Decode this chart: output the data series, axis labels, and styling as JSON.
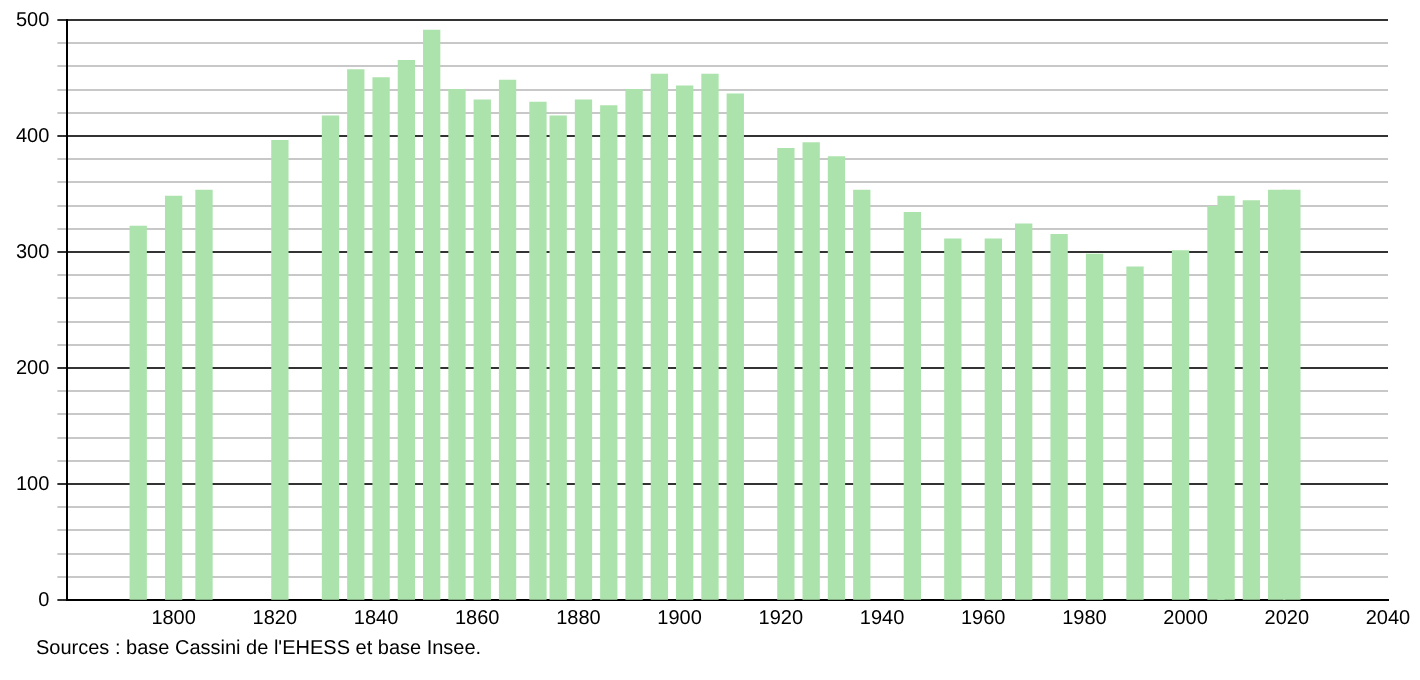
{
  "chart_data": {
    "type": "bar",
    "color": "#ace3ac",
    "x": [
      1793,
      1800,
      1806,
      1821,
      1831,
      1836,
      1841,
      1846,
      1851,
      1856,
      1861,
      1866,
      1872,
      1876,
      1881,
      1886,
      1891,
      1896,
      1901,
      1906,
      1911,
      1921,
      1926,
      1931,
      1936,
      1946,
      1954,
      1962,
      1968,
      1975,
      1982,
      1990,
      1999,
      2006,
      2008,
      2013,
      2018,
      2021
    ],
    "values": [
      322,
      348,
      353,
      396,
      417,
      457,
      450,
      465,
      491,
      440,
      431,
      448,
      429,
      417,
      431,
      426,
      440,
      453,
      443,
      453,
      436,
      389,
      394,
      382,
      353,
      334,
      311,
      311,
      324,
      315,
      298,
      287,
      301,
      339,
      348,
      344,
      353,
      353
    ],
    "xlim": [
      1779,
      2040
    ],
    "xticks": [
      1800,
      1820,
      1840,
      1860,
      1880,
      1900,
      1920,
      1940,
      1960,
      1980,
      2000,
      2020,
      2040
    ],
    "ylim": [
      0,
      500
    ],
    "yticks": [
      0,
      {
        "value": 20,
        "label": null
      },
      {
        "value": 40,
        "label": null
      },
      {
        "value": 60,
        "label": null
      },
      {
        "value": 80,
        "label": null
      },
      100,
      {
        "value": 120,
        "label": null
      },
      {
        "value": 140,
        "label": null
      },
      {
        "value": 160,
        "label": null
      },
      {
        "value": 180,
        "label": null
      },
      200,
      {
        "value": 220,
        "label": null
      },
      {
        "value": 240,
        "label": null
      },
      {
        "value": 260,
        "label": null
      },
      {
        "value": 280,
        "label": null
      },
      300,
      {
        "value": 320,
        "label": null
      },
      {
        "value": 340,
        "label": null
      },
      {
        "value": 360,
        "label": null
      },
      {
        "value": 380,
        "label": null
      },
      400,
      {
        "value": 420,
        "label": null
      },
      {
        "value": 440,
        "label": null
      },
      {
        "value": 460,
        "label": null
      },
      {
        "value": 480,
        "label": null
      },
      500
    ],
    "grid": "y",
    "annotations": [
      "Sources : base Cassini de l'EHESS et base Insee."
    ]
  }
}
